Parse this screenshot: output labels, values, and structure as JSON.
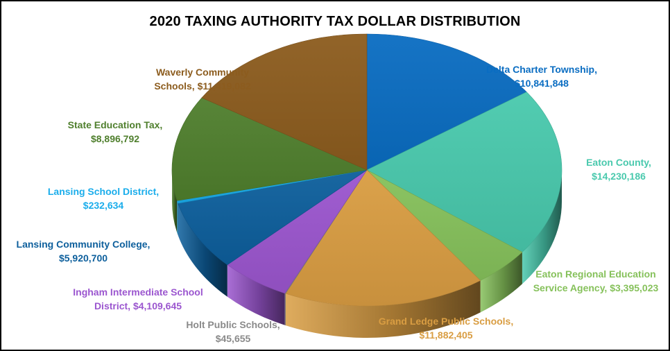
{
  "chart_data": {
    "type": "pie",
    "title": "2020 TAXING AUTHORITY TAX DOLLAR DISTRIBUTION",
    "unit": "$",
    "slices": [
      {
        "key": "delta",
        "lines": [
          "Delta Charter Township,",
          "$10,841,848"
        ],
        "value": 10841848,
        "color": "#0A6DC2"
      },
      {
        "key": "eaton",
        "lines": [
          "Eaton County,",
          "$14,230,186"
        ],
        "value": 14230186,
        "color": "#49C9AD"
      },
      {
        "key": "eresa",
        "lines": [
          "Eaton Regional Education",
          "Service Agency, $3,395,023"
        ],
        "value": 3395023,
        "color": "#86C15B"
      },
      {
        "key": "grand",
        "lines": [
          "Grand Ledge Public Schools,",
          "$11,882,405"
        ],
        "value": 11882405,
        "color": "#D99D42"
      },
      {
        "key": "holt",
        "lines": [
          "Holt Public Schools,",
          "$45,655"
        ],
        "value": 45655,
        "color": "#8A8A8A"
      },
      {
        "key": "ingham",
        "lines": [
          "Ingham Intermediate School",
          "District, $4,109,645"
        ],
        "value": 4109645,
        "color": "#9B56CF"
      },
      {
        "key": "lcc",
        "lines": [
          "Lansing Community College,",
          "$5,920,700"
        ],
        "value": 5920700,
        "color": "#0D5F9C"
      },
      {
        "key": "lsd",
        "lines": [
          "Lansing School District,",
          "$232,634"
        ],
        "value": 232634,
        "color": "#1AADEB"
      },
      {
        "key": "set",
        "lines": [
          "State Education Tax,",
          "$8,896,792"
        ],
        "value": 8896792,
        "color": "#4F7F2D"
      },
      {
        "key": "waverly",
        "lines": [
          "Waverly Community",
          "Schools, $11,419,082"
        ],
        "value": 11419082,
        "color": "#8C5C1E"
      }
    ],
    "label_colors": {
      "delta": "#0A6DC2",
      "eaton": "#49C9AD",
      "eresa": "#86C15B",
      "grand": "#D99D42",
      "holt": "#8A8A8A",
      "ingham": "#9B56CF",
      "lcc": "#0D5F9C",
      "lsd": "#1AADEB",
      "set": "#4F7F2D",
      "waverly": "#8C5C1E"
    },
    "style": "3d-exploded-pie"
  }
}
